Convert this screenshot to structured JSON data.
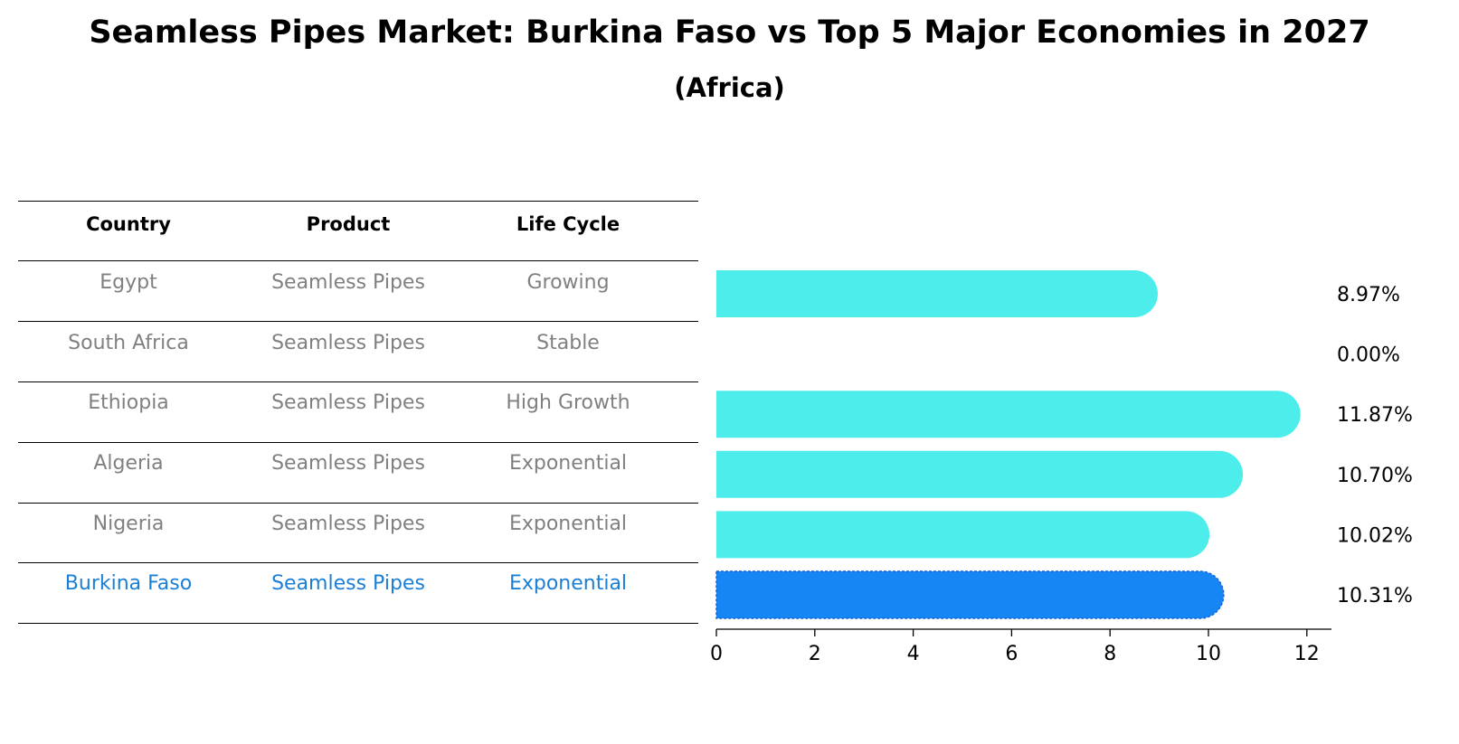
{
  "title": "Seamless Pipes Market: Burkina Faso vs Top 5 Major Economies in 2027",
  "subtitle": "(Africa)",
  "table": {
    "headers": [
      "Country",
      "Product",
      "Life Cycle"
    ],
    "rows": [
      {
        "country": "Egypt",
        "product": "Seamless Pipes",
        "life_cycle": "Growing"
      },
      {
        "country": "South Africa",
        "product": "Seamless Pipes",
        "life_cycle": "Stable"
      },
      {
        "country": "Ethiopia",
        "product": "Seamless Pipes",
        "life_cycle": "High Growth"
      },
      {
        "country": "Algeria",
        "product": "Seamless Pipes",
        "life_cycle": "Exponential"
      },
      {
        "country": "Nigeria",
        "product": "Seamless Pipes",
        "life_cycle": "Exponential"
      },
      {
        "country": "Burkina Faso",
        "product": "Seamless Pipes",
        "life_cycle": "Exponential"
      }
    ]
  },
  "colors": {
    "bar": "#4DEDEB",
    "highlight_bar": "#1786F5",
    "highlight_text": "#1a7fd6",
    "muted_text": "#808080"
  },
  "chart_data": {
    "type": "bar",
    "orientation": "horizontal",
    "categories": [
      "Egypt",
      "South Africa",
      "Ethiopia",
      "Algeria",
      "Nigeria",
      "Burkina Faso"
    ],
    "values": [
      8.97,
      0.0,
      11.87,
      10.7,
      10.02,
      10.31
    ],
    "value_labels": [
      "8.97%",
      "0.00%",
      "11.87%",
      "10.70%",
      "10.02%",
      "10.31%"
    ],
    "highlight": "Burkina Faso",
    "xlim": [
      0,
      12.5
    ],
    "xticks": [
      "0",
      "2",
      "4",
      "6",
      "8",
      "10",
      "12"
    ],
    "grid": false
  }
}
